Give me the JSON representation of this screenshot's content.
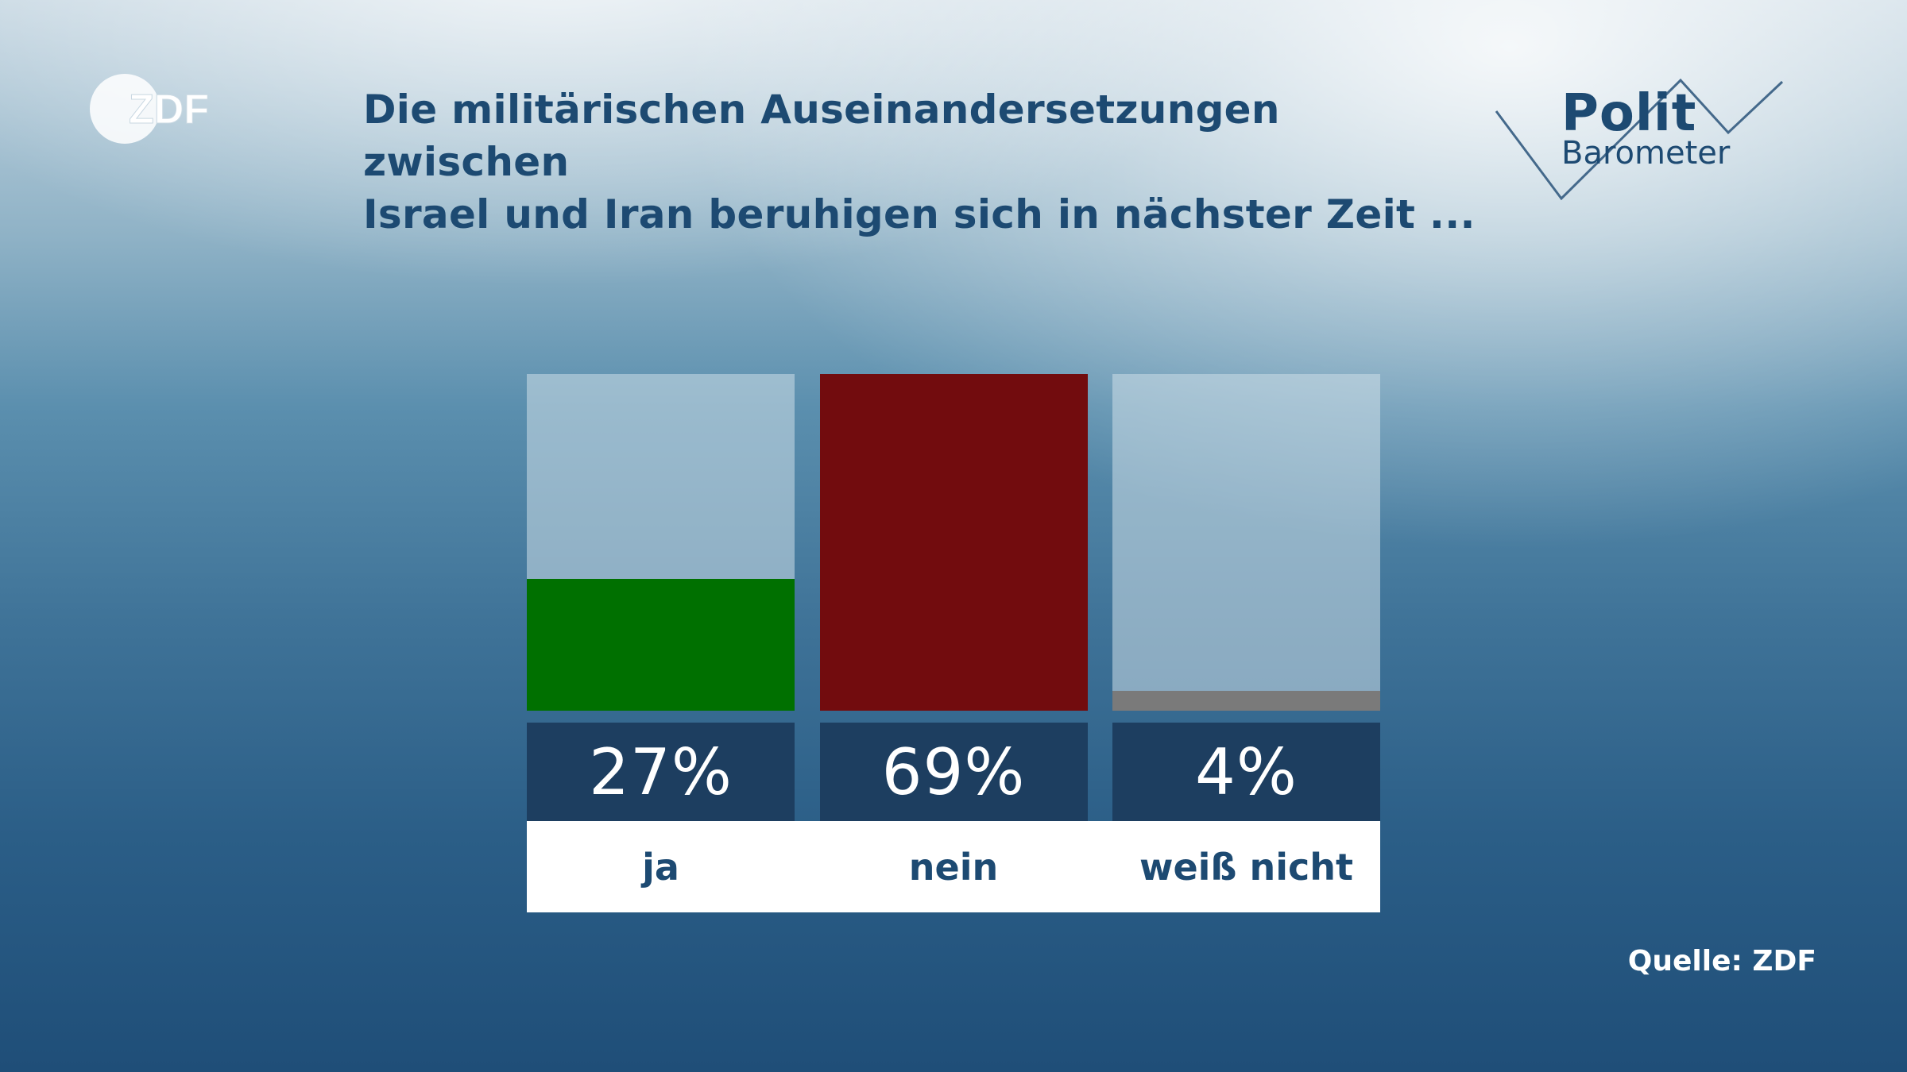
{
  "brand": {
    "logo_text": "ZDF",
    "program_word1": "Polit",
    "program_word2": "Barometer"
  },
  "colors": {
    "title": "#1d4a72",
    "value_box": "#1d3e60"
  },
  "chart_data": {
    "type": "bar",
    "title": "Die militärischen Auseinandersetzungen zwischen Israel und Iran beruhigen sich in nächster Zeit ...",
    "title_line1": "Die militärischen Auseinandersetzungen zwischen",
    "title_line2": "Israel und Iran beruhigen sich in nächster Zeit ...",
    "categories": [
      "ja",
      "nein",
      "weiß nicht"
    ],
    "values": [
      27,
      69,
      4
    ],
    "value_labels": [
      "27%",
      "69%",
      "4%"
    ],
    "colors": [
      "#007000",
      "#720c0e",
      "#7a7a7a"
    ],
    "ylim": [
      0,
      69
    ],
    "xlabel": "",
    "ylabel": "",
    "grid": false,
    "legend": "none"
  },
  "footer": {
    "source": "Quelle: ZDF"
  }
}
